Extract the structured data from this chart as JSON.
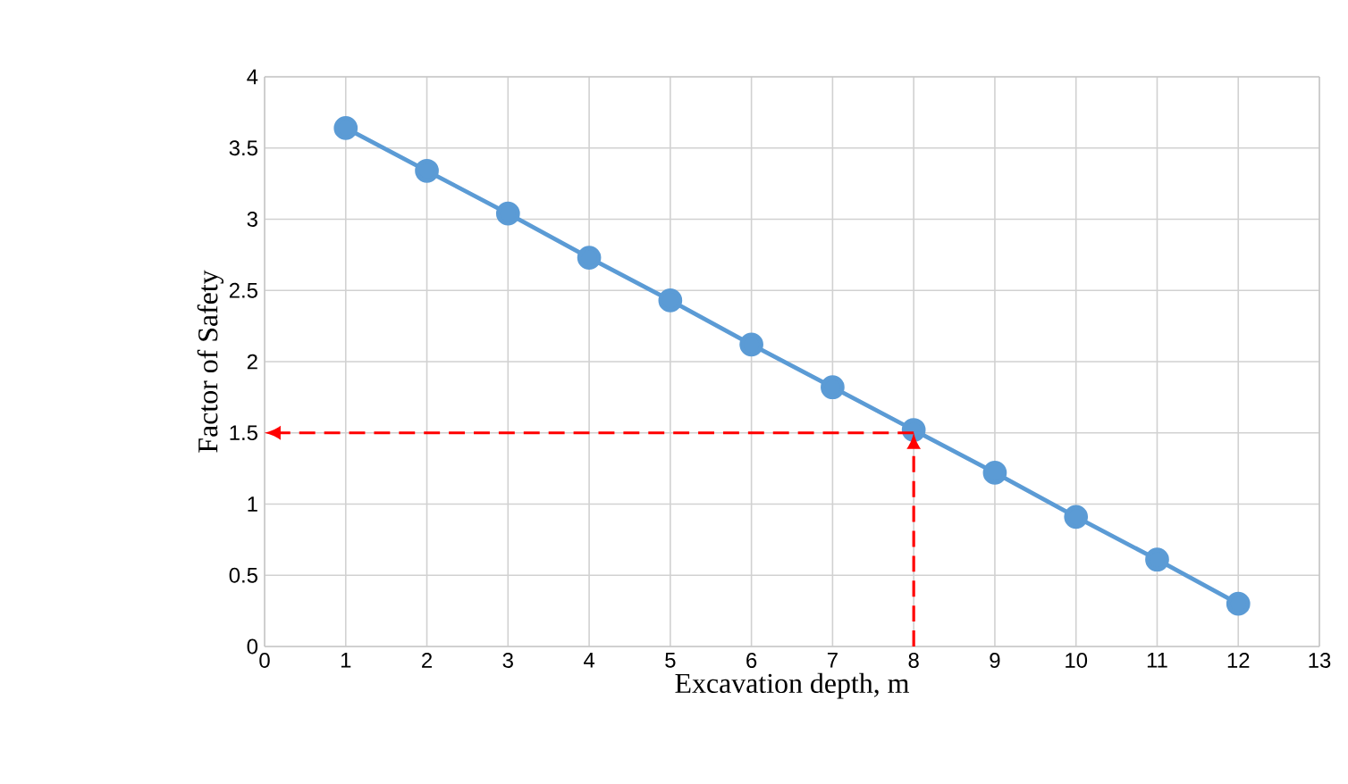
{
  "chart_data": {
    "type": "line",
    "xlabel": "Excavation depth, m",
    "ylabel": "Factor of Safety",
    "x": [
      1,
      2,
      3,
      4,
      5,
      6,
      7,
      8,
      9,
      10,
      11,
      12
    ],
    "series": [
      {
        "color": "#5b9bd5",
        "values": [
          3.64,
          3.34,
          3.04,
          2.73,
          2.43,
          2.12,
          1.82,
          1.52,
          1.22,
          0.91,
          0.61,
          0.3
        ]
      }
    ],
    "xlim": [
      0,
      13
    ],
    "xticks": [
      0,
      1,
      2,
      3,
      4,
      5,
      6,
      7,
      8,
      9,
      10,
      11,
      12,
      13
    ],
    "ylim": [
      0,
      4
    ],
    "yticks": [
      0,
      0.5,
      1,
      1.5,
      2,
      2.5,
      3,
      3.5,
      4
    ],
    "grid": true,
    "marker": "circle",
    "line_style": "solid",
    "ref_lines": [
      {
        "axis": "x",
        "value": 8,
        "color": "#ff0000",
        "line_style": "dashed"
      },
      {
        "axis": "y",
        "value": 1.5,
        "color": "#ff0000",
        "line_style": "dashed"
      }
    ]
  }
}
